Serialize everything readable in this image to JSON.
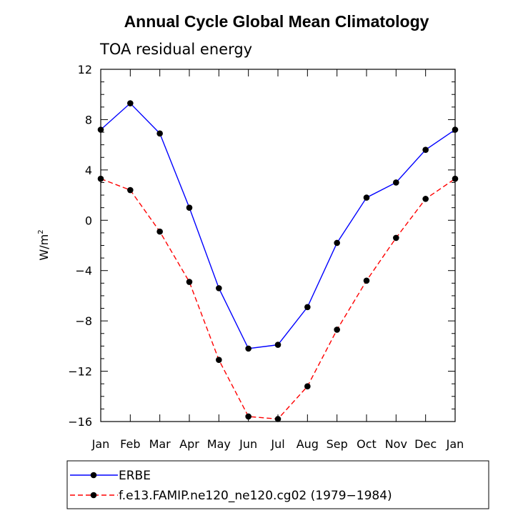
{
  "chart_data": {
    "type": "line",
    "title": "Annual Cycle Global Mean Climatology",
    "subtitle": "TOA residual energy",
    "xlabel": "",
    "ylabel": "W/m",
    "ylabel_superscript": "2",
    "ylim": [
      -16,
      12
    ],
    "yticks": [
      -16,
      -12,
      -8,
      -4,
      0,
      4,
      8,
      12
    ],
    "ytick_labels": [
      "−16",
      "−12",
      "−8",
      "−4",
      "0",
      "4",
      "8",
      "12"
    ],
    "categories": [
      "Jan",
      "Feb",
      "Mar",
      "Apr",
      "May",
      "Jun",
      "Jul",
      "Aug",
      "Sep",
      "Oct",
      "Nov",
      "Dec",
      "Jan"
    ],
    "grid": false,
    "legend_position": "bottom",
    "series": [
      {
        "name": "ERBE",
        "color": "#0000ff",
        "line_style": "solid",
        "marker": "filled-circle",
        "values": [
          7.2,
          9.3,
          6.9,
          1.0,
          -5.4,
          -10.2,
          -9.9,
          -6.9,
          -1.8,
          1.8,
          3.0,
          5.6,
          7.2
        ]
      },
      {
        "name": "f.e13.FAMIP.ne120_ne120.cg02 (1979−1984)",
        "color": "#ff0000",
        "line_style": "dashed",
        "marker": "filled-circle",
        "values": [
          3.3,
          2.4,
          -0.9,
          -4.9,
          -11.1,
          -15.6,
          -15.8,
          -13.2,
          -8.7,
          -4.8,
          -1.4,
          1.7,
          3.3
        ]
      }
    ]
  }
}
